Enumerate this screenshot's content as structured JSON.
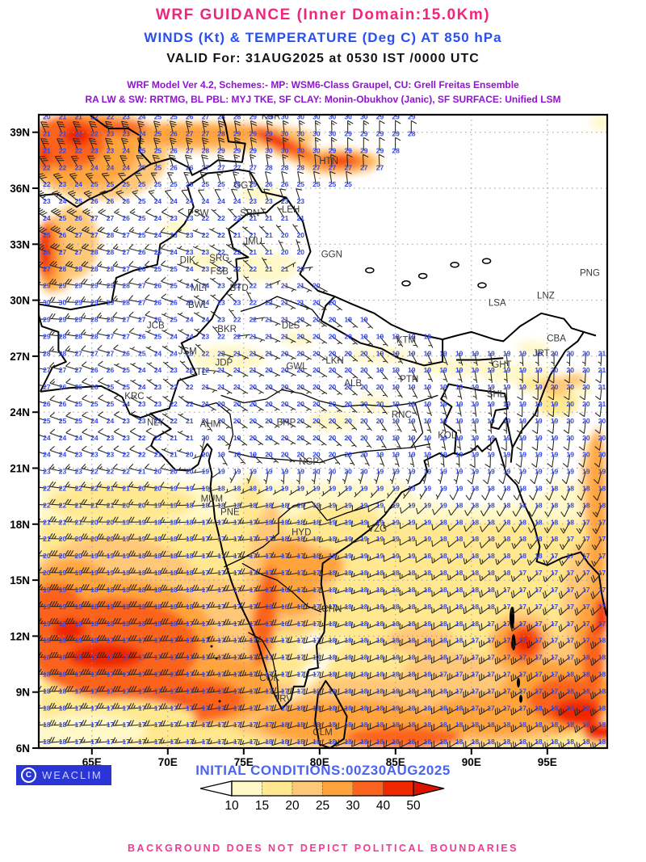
{
  "header": {
    "title": "WRF GUIDANCE (Inner Domain:15.0Km)",
    "subtitle": "WINDS (Kt) & TEMPERATURE (Deg C) AT 850 hPa",
    "valid": "VALID For: 31AUG2025 at 0530 IST /0000 UTC",
    "model_line1": "WRF Model Ver 4.2, Schemes:- MP: WSM6-Class Graupel, CU: Grell Freitas Ensemble",
    "model_line2": "RA LW & SW: RRTMG, BL PBL: MYJ TKE, SF CLAY: Monin-Obukhov (Janic), SF SURFACE: Unified LSM",
    "colors": {
      "title": "#F0257E",
      "subtitle": "#2850F0",
      "valid": "#141414",
      "model": "#9013D2"
    }
  },
  "footer": {
    "logo": "WEACLIM",
    "copyright_mark": "C",
    "initial_conditions": "INITIAL CONDITIONS:00Z30AUG2025",
    "disclaimer": "BACKGROUND DOES NOT DEPICT POLITICAL BOUNDARIES",
    "colors": {
      "initial": "#4A64F0",
      "disclaimer": "#F23A92",
      "logo_bg": "#2A35D6"
    }
  },
  "colorbar": {
    "tick_labels": [
      "10",
      "15",
      "20",
      "25",
      "30",
      "40",
      "50"
    ],
    "segment_colors": [
      "#FFF8C8",
      "#FFE88F",
      "#FFC878",
      "#FFA43C",
      "#FB641E",
      "#F02800"
    ],
    "left_arrow_color": "#FFFFFF",
    "right_arrow_color": "#D81400"
  },
  "map": {
    "lat_ticks": [
      {
        "label": "39N",
        "value": 39
      },
      {
        "label": "36N",
        "value": 36
      },
      {
        "label": "33N",
        "value": 33
      },
      {
        "label": "30N",
        "value": 30
      },
      {
        "label": "27N",
        "value": 27
      },
      {
        "label": "24N",
        "value": 24
      },
      {
        "label": "21N",
        "value": 21
      },
      {
        "label": "18N",
        "value": 18
      },
      {
        "label": "15N",
        "value": 15
      },
      {
        "label": "12N",
        "value": 12
      },
      {
        "label": "9N",
        "value": 9
      },
      {
        "label": "6N",
        "value": 6
      }
    ],
    "lon_ticks": [
      {
        "label": "65E",
        "value": 65
      },
      {
        "label": "70E",
        "value": 70
      },
      {
        "label": "75E",
        "value": 75
      },
      {
        "label": "80E",
        "value": 80
      },
      {
        "label": "85E",
        "value": 85
      },
      {
        "label": "90E",
        "value": 90
      },
      {
        "label": "95E",
        "value": 95
      }
    ],
    "temp_color": "#3448E8",
    "barb_color": "#26251B",
    "station_color": "#383838",
    "stations": [
      {
        "code": "KSR",
        "lon": 76.8,
        "lat": 39.7
      },
      {
        "code": "HTN",
        "lon": 80.6,
        "lat": 37.3
      },
      {
        "code": "GGT",
        "lon": 75.0,
        "lat": 36.0
      },
      {
        "code": "SRN",
        "lon": 75.4,
        "lat": 34.5
      },
      {
        "code": "LEH",
        "lon": 78.1,
        "lat": 34.7
      },
      {
        "code": "PSW",
        "lon": 72.0,
        "lat": 34.5
      },
      {
        "code": "JMU",
        "lon": 75.6,
        "lat": 33.0
      },
      {
        "code": "SRG",
        "lon": 73.4,
        "lat": 32.1
      },
      {
        "code": "FSB",
        "lon": 73.4,
        "lat": 31.4
      },
      {
        "code": "DIK",
        "lon": 71.3,
        "lat": 32.0
      },
      {
        "code": "MLT",
        "lon": 72.1,
        "lat": 30.5
      },
      {
        "code": "BTD",
        "lon": 74.7,
        "lat": 30.5
      },
      {
        "code": "BWL",
        "lon": 72.0,
        "lat": 29.6
      },
      {
        "code": "JCB",
        "lon": 69.2,
        "lat": 28.5
      },
      {
        "code": "BKR",
        "lon": 73.9,
        "lat": 28.3
      },
      {
        "code": "DLS",
        "lon": 78.1,
        "lat": 28.5
      },
      {
        "code": "GGN",
        "lon": 80.8,
        "lat": 32.3
      },
      {
        "code": "KTM",
        "lon": 85.7,
        "lat": 27.7
      },
      {
        "code": "LSA",
        "lon": 91.7,
        "lat": 29.7
      },
      {
        "code": "LNZ",
        "lon": 94.9,
        "lat": 30.1
      },
      {
        "code": "PNG",
        "lon": 97.8,
        "lat": 31.3
      },
      {
        "code": "JSM",
        "lon": 71.3,
        "lat": 27.1
      },
      {
        "code": "JDP",
        "lon": 73.7,
        "lat": 26.5
      },
      {
        "code": "UTL",
        "lon": 72.0,
        "lat": 26.0
      },
      {
        "code": "GWL",
        "lon": 78.5,
        "lat": 26.3
      },
      {
        "code": "LKN",
        "lon": 81.0,
        "lat": 26.6
      },
      {
        "code": "ALB",
        "lon": 82.2,
        "lat": 25.4
      },
      {
        "code": "PTN",
        "lon": 85.9,
        "lat": 25.6
      },
      {
        "code": "GHT",
        "lon": 92.0,
        "lat": 26.4
      },
      {
        "code": "SHL",
        "lon": 91.6,
        "lat": 24.8
      },
      {
        "code": "JRT",
        "lon": 94.6,
        "lat": 27.0
      },
      {
        "code": "CBA",
        "lon": 95.6,
        "lat": 27.8
      },
      {
        "code": "KRC",
        "lon": 67.8,
        "lat": 24.7
      },
      {
        "code": "NLY",
        "lon": 69.2,
        "lat": 23.3
      },
      {
        "code": "AHM",
        "lon": 72.8,
        "lat": 23.2
      },
      {
        "code": "BHP",
        "lon": 77.8,
        "lat": 23.3
      },
      {
        "code": "RNC",
        "lon": 85.4,
        "lat": 23.7
      },
      {
        "code": "KOL",
        "lon": 88.4,
        "lat": 22.6
      },
      {
        "code": "NGP",
        "lon": 79.3,
        "lat": 21.2
      },
      {
        "code": "MUM",
        "lon": 72.9,
        "lat": 19.2
      },
      {
        "code": "PNE",
        "lon": 74.1,
        "lat": 18.5
      },
      {
        "code": "HYD",
        "lon": 78.8,
        "lat": 17.4
      },
      {
        "code": "VZG",
        "lon": 83.8,
        "lat": 17.6
      },
      {
        "code": "CHN",
        "lon": 80.8,
        "lat": 13.3
      },
      {
        "code": "COK",
        "lon": 76.7,
        "lat": 9.6
      },
      {
        "code": "TRV",
        "lon": 77.6,
        "lat": 8.5
      },
      {
        "code": "CLM",
        "lon": 80.2,
        "lat": 6.7
      }
    ],
    "field": {
      "lons": [
        62,
        66,
        70,
        74,
        78,
        82,
        86,
        90,
        94,
        98.9
      ],
      "lats": [
        6,
        10,
        14,
        18,
        22,
        26,
        30,
        34,
        38,
        40
      ],
      "temp": [
        [
          18,
          17,
          17,
          17,
          18,
          18,
          18,
          18,
          18,
          18
        ],
        [
          18,
          17,
          17,
          17,
          17,
          18,
          18,
          17,
          17,
          18
        ],
        [
          19,
          18,
          18,
          17,
          16,
          18,
          18,
          18,
          17,
          17
        ],
        [
          21,
          20,
          18,
          17,
          18,
          19,
          19,
          18,
          18,
          17
        ],
        [
          24,
          23,
          21,
          19,
          20,
          20,
          19,
          19,
          19,
          20
        ],
        [
          27,
          26,
          23,
          21,
          20,
          20,
          19,
          19,
          19,
          21
        ],
        [
          30,
          29,
          26,
          23,
          21,
          19,
          19,
          19,
          19,
          20
        ],
        [
          24,
          28,
          23,
          21,
          20,
          20,
          19,
          19,
          19,
          20
        ],
        [
          21,
          23,
          26,
          29,
          30,
          29,
          28,
          27,
          26,
          25
        ],
        [
          20,
          22,
          25,
          28,
          30,
          30,
          29,
          28,
          26,
          25
        ]
      ],
      "speed": [
        [
          18,
          15,
          15,
          15,
          18,
          18,
          20,
          22,
          25,
          25
        ],
        [
          35,
          35,
          30,
          25,
          22,
          18,
          20,
          25,
          28,
          25
        ],
        [
          35,
          32,
          28,
          22,
          20,
          15,
          15,
          18,
          20,
          20
        ],
        [
          25,
          22,
          18,
          15,
          15,
          12,
          10,
          10,
          12,
          15
        ],
        [
          12,
          10,
          8,
          5,
          7,
          5,
          5,
          8,
          8,
          10
        ],
        [
          15,
          8,
          5,
          5,
          5,
          5,
          5,
          5,
          8,
          8
        ],
        [
          25,
          15,
          8,
          5,
          5,
          5,
          5,
          5,
          5,
          5
        ],
        [
          40,
          20,
          8,
          5,
          5,
          5,
          5,
          5,
          5,
          5
        ],
        [
          28,
          28,
          25,
          22,
          15,
          12,
          10,
          10,
          10,
          10
        ],
        [
          28,
          30,
          28,
          25,
          18,
          15,
          10,
          10,
          10,
          10
        ]
      ],
      "dir": [
        [
          265,
          265,
          262,
          258,
          252,
          248,
          242,
          238,
          235,
          232
        ],
        [
          268,
          268,
          266,
          262,
          258,
          250,
          245,
          240,
          235,
          230
        ],
        [
          270,
          270,
          268,
          265,
          262,
          252,
          242,
          235,
          230,
          225
        ],
        [
          272,
          270,
          268,
          265,
          262,
          252,
          240,
          225,
          215,
          205
        ],
        [
          290,
          295,
          300,
          130,
          120,
          140,
          160,
          175,
          185,
          190
        ],
        [
          285,
          295,
          310,
          120,
          115,
          130,
          150,
          170,
          180,
          185
        ],
        [
          270,
          275,
          290,
          310,
          120,
          130,
          150,
          160,
          170,
          180
        ],
        [
          300,
          290,
          280,
          300,
          320,
          330,
          340,
          350,
          355,
          360
        ],
        [
          335,
          340,
          345,
          350,
          355,
          360,
          360,
          360,
          360,
          360
        ],
        [
          335,
          340,
          345,
          350,
          355,
          360,
          360,
          360,
          360,
          360
        ]
      ]
    },
    "masked_region": [
      [
        79.2,
        34.8
      ],
      [
        79.6,
        31.2
      ],
      [
        81.5,
        29.8
      ],
      [
        85.0,
        28.6
      ],
      [
        89.0,
        27.9
      ],
      [
        93.5,
        27.4
      ],
      [
        98.9,
        27.6
      ],
      [
        98.9,
        39.9
      ],
      [
        86.6,
        39.9
      ],
      [
        86.1,
        38.1
      ],
      [
        84.0,
        36.7
      ],
      [
        82.0,
        36.1
      ],
      [
        80.2,
        35.9
      ]
    ]
  }
}
